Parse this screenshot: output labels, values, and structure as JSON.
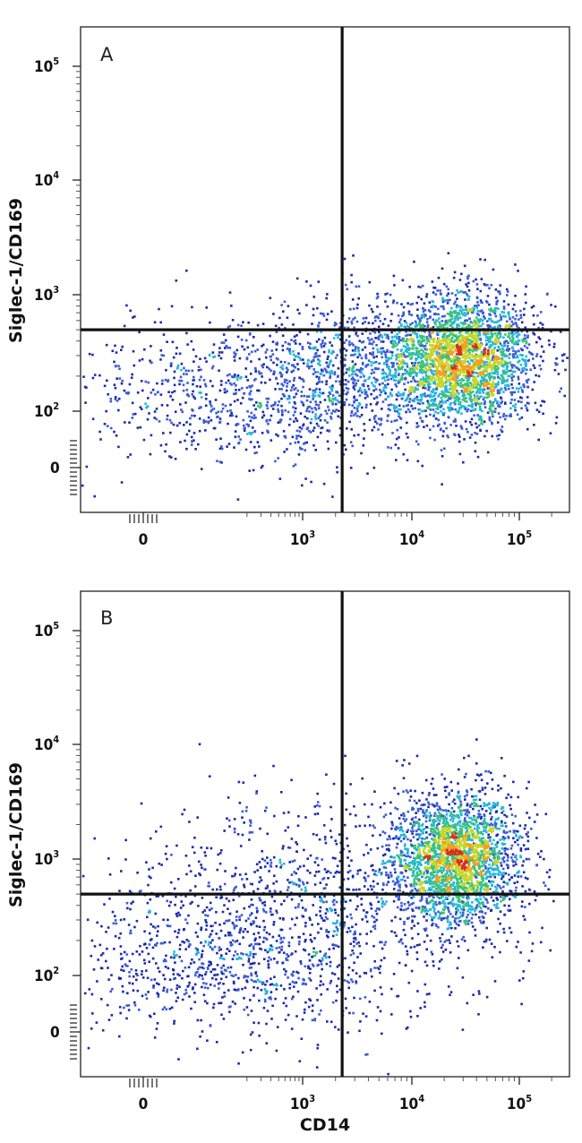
{
  "chart_data": [
    {
      "type": "scatter",
      "subtype": "flow-cytometry-density",
      "panel_label": "A",
      "xlabel": "",
      "ylabel": "Siglec-1/CD169",
      "x_scale": "biexponential",
      "y_scale": "biexponential",
      "x_ticks": [
        {
          "base": "0",
          "exp": ""
        },
        {
          "base": "10",
          "exp": "3"
        },
        {
          "base": "10",
          "exp": "4"
        },
        {
          "base": "10",
          "exp": "5"
        }
      ],
      "y_ticks": [
        {
          "base": "0",
          "exp": ""
        },
        {
          "base": "10",
          "exp": "2"
        },
        {
          "base": "10",
          "exp": "3"
        },
        {
          "base": "10",
          "exp": "4"
        },
        {
          "base": "10",
          "exp": "5"
        }
      ],
      "quadrant_gate": {
        "x": 2300,
        "y": 500
      },
      "populations": [
        {
          "name": "",
          "cx": 30000,
          "cy": 280,
          "spread_x_decades": 0.35,
          "spread_y_decades": 0.28,
          "events": 2600
        },
        {
          "name": "",
          "cx": 250,
          "cy": 140,
          "spread_x_decades": 0.9,
          "spread_y_decades": 0.3,
          "events": 900
        },
        {
          "name": "",
          "cx": 3000,
          "cy": 230,
          "spread_x_decades": 0.5,
          "spread_y_decades": 0.3,
          "events": 700
        }
      ],
      "grid": false,
      "legend": "none"
    },
    {
      "type": "scatter",
      "subtype": "flow-cytometry-density",
      "panel_label": "B",
      "xlabel": "CD14",
      "ylabel": "Siglec-1/CD169",
      "x_scale": "biexponential",
      "y_scale": "biexponential",
      "x_ticks": [
        {
          "base": "0",
          "exp": ""
        },
        {
          "base": "10",
          "exp": "3"
        },
        {
          "base": "10",
          "exp": "4"
        },
        {
          "base": "10",
          "exp": "5"
        }
      ],
      "y_ticks": [
        {
          "base": "0",
          "exp": ""
        },
        {
          "base": "10",
          "exp": "2"
        },
        {
          "base": "10",
          "exp": "3"
        },
        {
          "base": "10",
          "exp": "4"
        },
        {
          "base": "10",
          "exp": "5"
        }
      ],
      "quadrant_gate": {
        "x": 2300,
        "y": 500
      },
      "populations": [
        {
          "name": "",
          "cx": 25000,
          "cy": 1000,
          "spread_x_decades": 0.3,
          "spread_y_decades": 0.28,
          "events": 2400
        },
        {
          "name": "",
          "cx": 130,
          "cy": 130,
          "spread_x_decades": 0.8,
          "spread_y_decades": 0.3,
          "events": 800
        },
        {
          "name": "",
          "cx": 1500,
          "cy": 500,
          "spread_x_decades": 0.9,
          "spread_y_decades": 0.45,
          "events": 900
        }
      ],
      "grid": false,
      "legend": "none"
    }
  ],
  "density_colors": [
    "#1c2aa8",
    "#3b5cd6",
    "#25b7d8",
    "#39c27a",
    "#c7d62b",
    "#f0a21f",
    "#d8301e"
  ]
}
